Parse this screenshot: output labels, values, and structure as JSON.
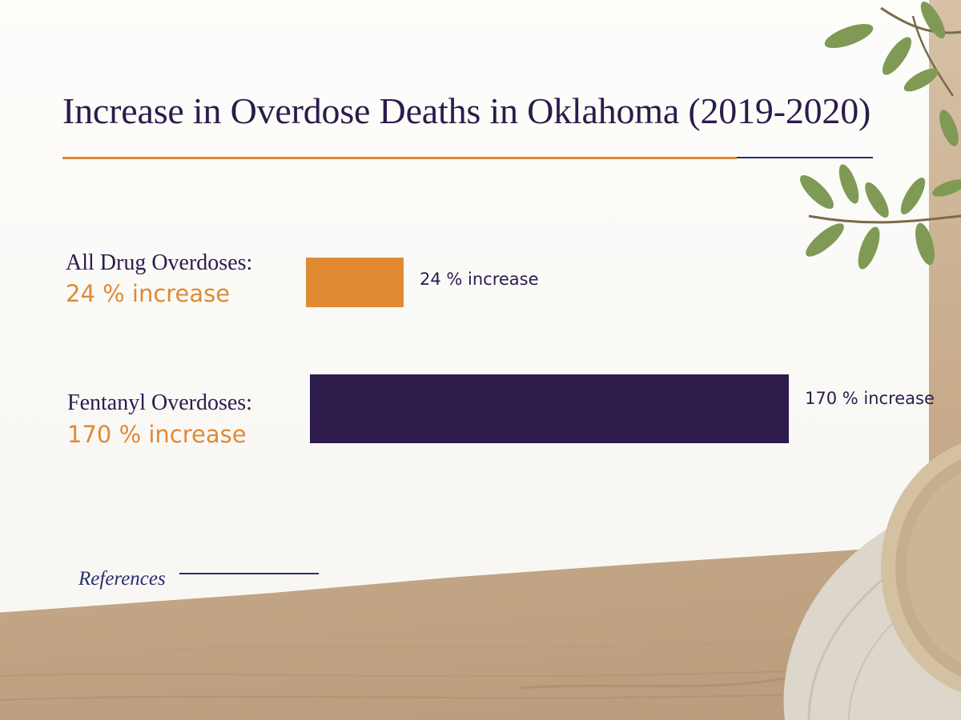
{
  "chart_data": {
    "type": "bar",
    "orientation": "horizontal",
    "title": "Increase in Overdose Deaths in Oklahoma (2019-2020)",
    "categories": [
      "All Drug Overdoses:",
      "Fentanyl Overdoses:"
    ],
    "values": [
      24,
      170
    ],
    "value_labels": [
      "24 % increase",
      "170 % increase"
    ],
    "unit": "%",
    "xlim": [
      0,
      170
    ],
    "colors": [
      "#e08a34",
      "#2d1b4c"
    ],
    "grid": false,
    "legend": "none"
  },
  "footer": {
    "references_label": "References"
  },
  "decor": {
    "plant": "olive-branch-icon",
    "bowl": "ceramic-bowl-icon",
    "cloth": "linen-cloth-icon"
  },
  "colors": {
    "accent_orange": "#e08a34",
    "deep_purple": "#2d1b4c",
    "navy": "#2b2f6e"
  }
}
